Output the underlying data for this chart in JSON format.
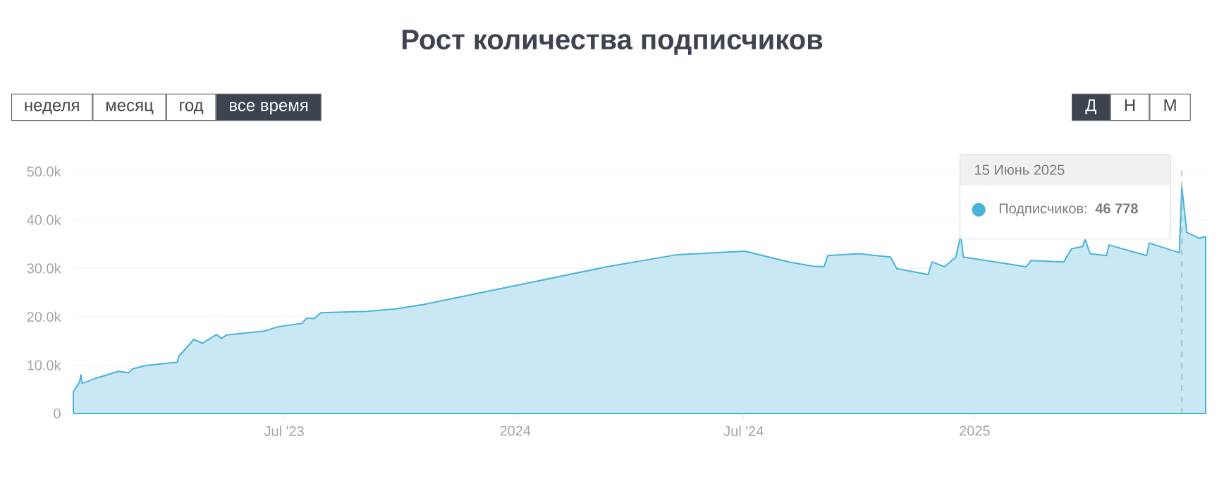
{
  "chart_data": {
    "type": "area",
    "title": "Рост количества подписчиков",
    "annotations": [
      "неделя",
      "месяц",
      "год",
      "все время",
      "Д",
      "Н",
      "М",
      "15 Июнь 2025",
      "46 778"
    ],
    "x": [
      "2023-01-14",
      "2023-01-19",
      "2023-01-20",
      "2023-01-21",
      "2023-01-31",
      "2023-02-19",
      "2023-02-27",
      "2023-03-02",
      "2023-03-13",
      "2023-04-07",
      "2023-04-08",
      "2023-04-20",
      "2023-04-27",
      "2023-05-08",
      "2023-05-12",
      "2023-05-16",
      "2023-06-15",
      "2023-06-26",
      "2023-07-15",
      "2023-07-19",
      "2023-07-25",
      "2023-07-30",
      "2023-09-05",
      "2023-09-28",
      "2023-10-20",
      "2024-01-01",
      "2024-03-14",
      "2024-05-09",
      "2024-07-02",
      "2024-08-06",
      "2024-08-25",
      "2024-09-03",
      "2024-09-06",
      "2024-10-01",
      "2024-10-15",
      "2024-10-26",
      "2024-10-31",
      "2024-11-25",
      "2024-11-28",
      "2024-12-08",
      "2024-12-17",
      "2024-12-21",
      "2024-12-23",
      "2025-02-11",
      "2025-02-15",
      "2025-03-13",
      "2025-03-19",
      "2025-03-28",
      "2025-03-30",
      "2025-04-03",
      "2025-04-16",
      "2025-04-18",
      "2025-05-18",
      "2025-05-20",
      "2025-06-13",
      "2025-06-15",
      "2025-06-19",
      "2025-06-29",
      "2025-07-04"
    ],
    "series": [
      {
        "name": "Подписчиков:",
        "color": "#4ab3da",
        "values": [
          4500,
          6500,
          8000,
          6200,
          7200,
          8700,
          8400,
          9200,
          9900,
          10600,
          11800,
          15300,
          14500,
          16300,
          15500,
          16200,
          17000,
          17900,
          18600,
          19700,
          19600,
          20800,
          21100,
          21600,
          22500,
          26400,
          30300,
          32800,
          33500,
          31300,
          30400,
          30300,
          32600,
          33000,
          32600,
          32300,
          29900,
          28700,
          31300,
          30300,
          32300,
          36900,
          32300,
          30300,
          31600,
          31300,
          34000,
          34500,
          36000,
          33000,
          32600,
          34800,
          32600,
          35200,
          33200,
          46778,
          37400,
          36200,
          36500
        ]
      }
    ],
    "xlim": [
      "2023-01-14",
      "2025-07-04"
    ],
    "xticks": [
      {
        "value": "2023-07-01",
        "label": "Jul '23"
      },
      {
        "value": "2024-01-01",
        "label": "2024"
      },
      {
        "value": "2024-07-01",
        "label": "Jul '24"
      },
      {
        "value": "2025-01-01",
        "label": "2025"
      }
    ],
    "ylim": [
      0,
      51000
    ],
    "yticks": [
      0,
      {
        "value": 10000,
        "label": "10.0k"
      },
      {
        "value": 20000,
        "label": "20.0k"
      },
      {
        "value": 30000,
        "label": "30.0k"
      },
      {
        "value": 40000,
        "label": "40.0k"
      },
      {
        "value": 50000,
        "label": "50.0k"
      }
    ],
    "grid": "y",
    "ref_lines": [
      {
        "axis": "x",
        "value": "2025-06-15",
        "color": "#aaaaaa",
        "line_style": "dashed"
      }
    ]
  }
}
